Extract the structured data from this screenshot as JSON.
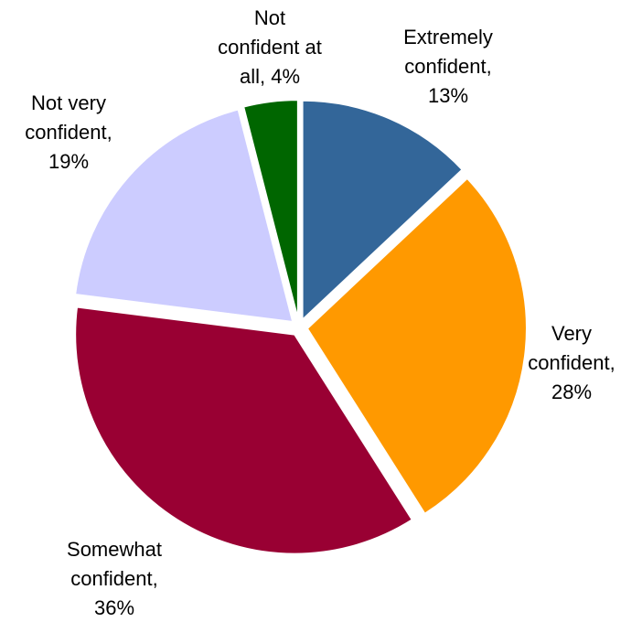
{
  "chart_data": {
    "type": "pie",
    "title": "",
    "legend": "none",
    "slices": [
      {
        "name": "Extremely confident",
        "value": 13,
        "color": "#336699",
        "label_lines": [
          "Extremely",
          "confident,",
          "13%"
        ]
      },
      {
        "name": "Very confident",
        "value": 28,
        "color": "#FF9900",
        "label_lines": [
          "Very",
          "confident,",
          "28%"
        ]
      },
      {
        "name": "Somewhat confident",
        "value": 36,
        "color": "#990033",
        "label_lines": [
          "Somewhat",
          "confident,",
          "36%"
        ]
      },
      {
        "name": "Not very confident",
        "value": 19,
        "color": "#CCCCFF",
        "label_lines": [
          "Not very",
          "confident,",
          "19%"
        ]
      },
      {
        "name": "Not confident at all",
        "value": 4,
        "color": "#006600",
        "label_lines": [
          "Not",
          "confident at",
          "all, 4%"
        ]
      }
    ]
  }
}
